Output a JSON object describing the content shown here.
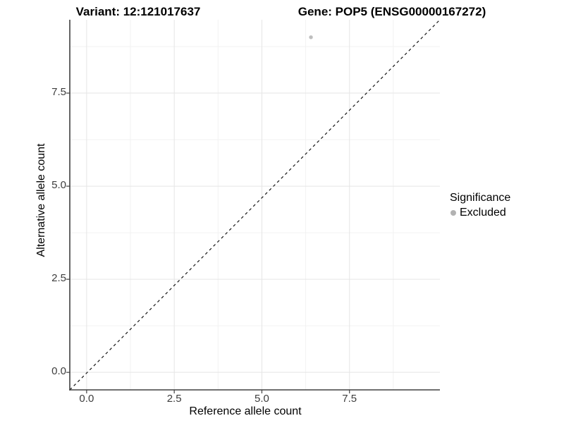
{
  "titles": {
    "left": "Variant: 12:121017637",
    "right": "Gene: POP5 (ENSG00000167272)"
  },
  "legend": {
    "title": "Significance",
    "items": [
      {
        "label": "Excluded",
        "color": "#b2b2b2"
      }
    ]
  },
  "chart_data": {
    "type": "scatter",
    "title": "Variant: 12:121017637    Gene: POP5 (ENSG00000167272)",
    "xlabel": "Reference allele count",
    "ylabel": "Alternative allele count",
    "xlim": [
      -0.48,
      10.08
    ],
    "ylim": [
      -0.47,
      9.47
    ],
    "x_tick_values": [
      0,
      2.5,
      5,
      7.5
    ],
    "x_tick_labels": [
      "0.0",
      "2.5",
      "5.0",
      "7.5"
    ],
    "y_tick_values": [
      0,
      2.5,
      5,
      7.5
    ],
    "y_tick_labels": [
      "0.0",
      "2.5",
      "5.0",
      "7.5"
    ],
    "x_minor_values": [
      1.25,
      3.75,
      6.25,
      8.75
    ],
    "y_minor_values": [
      1.25,
      3.75,
      6.25,
      8.75
    ],
    "grid": "on",
    "legend_position": "right",
    "series": [
      {
        "name": "Excluded",
        "points": [
          {
            "x": 6.4,
            "y": 9.0
          }
        ],
        "color": "#bebebe",
        "marker_radius_px": 2.7
      }
    ],
    "reference_line": {
      "type": "identity-diagonal",
      "style": "dashed",
      "color": "#141414",
      "dash": [
        4,
        4
      ],
      "spans": "panel bottom-left corner to panel top-right corner"
    },
    "colors": {
      "background": "#ffffff",
      "grid_major": "#e5e5e5",
      "grid_minor": "#f2f2f2",
      "axis_line": "#404040",
      "tick_mark": "#404040",
      "tick_label": "#3d3d3d",
      "title_text": "#000000"
    }
  }
}
